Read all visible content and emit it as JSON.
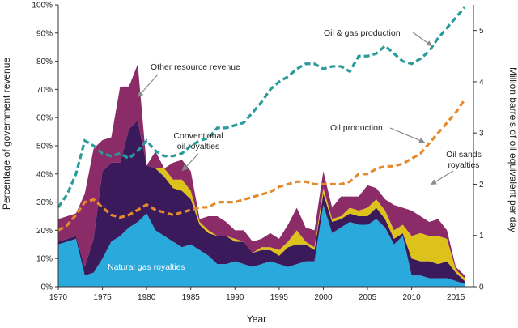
{
  "chart_data": {
    "type": "area",
    "xlabel": "Year",
    "ylabel_left": "Percentage of government revenue",
    "ylabel_right": "Million barrels of oil equivalent per day",
    "x_ticks": [
      "1970",
      "1975",
      "1980",
      "1985",
      "1990",
      "1995",
      "2000",
      "2005",
      "2010",
      "2015"
    ],
    "y_left_ticks": [
      "0%",
      "10%",
      "20%",
      "30%",
      "40%",
      "50%",
      "60%",
      "70%",
      "80%",
      "90%",
      "100%"
    ],
    "y_right_ticks": [
      "0",
      "1",
      "2",
      "3",
      "4",
      "5"
    ],
    "xlim": [
      1970,
      2017
    ],
    "ylim_left": [
      0,
      100
    ],
    "ylim_right": [
      0,
      5.5
    ],
    "x": [
      1970,
      1971,
      1972,
      1973,
      1974,
      1975,
      1976,
      1977,
      1978,
      1979,
      1980,
      1981,
      1982,
      1983,
      1984,
      1985,
      1986,
      1987,
      1988,
      1989,
      1990,
      1991,
      1992,
      1993,
      1994,
      1995,
      1996,
      1997,
      1998,
      1999,
      2000,
      2001,
      2002,
      2003,
      2004,
      2005,
      2006,
      2007,
      2008,
      2009,
      2010,
      2011,
      2012,
      2013,
      2014,
      2015,
      2016
    ],
    "stacked_series": [
      {
        "name": "Natural gas royalties",
        "color": "#29a9dc",
        "values": [
          15,
          16,
          17,
          4,
          5,
          10,
          16,
          18,
          21,
          23,
          26,
          20,
          18,
          16,
          14,
          15,
          13,
          11,
          8,
          8,
          9,
          8,
          7,
          8,
          9,
          8,
          7,
          8,
          9,
          9,
          29,
          19,
          21,
          23,
          22,
          22,
          24,
          21,
          15,
          18,
          4,
          4,
          3,
          3,
          3,
          2,
          1
        ]
      },
      {
        "name": "Conventional oil royalties",
        "color": "#3a1a5b",
        "values": [
          1,
          1,
          1,
          3,
          12,
          31,
          28,
          26,
          35,
          36,
          17,
          22,
          21,
          19,
          20,
          16,
          9,
          8,
          10,
          10,
          7,
          8,
          5,
          5,
          4,
          3,
          7,
          7,
          6,
          4,
          4,
          4,
          3,
          3,
          3,
          3,
          4,
          3,
          2,
          1,
          6,
          5,
          6,
          5,
          6,
          3,
          1
        ]
      },
      {
        "name": "Oil sands royalties",
        "color": "#dcc21a",
        "values": [
          0,
          0,
          0,
          0,
          0,
          0,
          0,
          0,
          0,
          0,
          0,
          0,
          3,
          3,
          4,
          3,
          1,
          1,
          0,
          0,
          1,
          0,
          0,
          1,
          1,
          2,
          2,
          5,
          1,
          1,
          2,
          1,
          1,
          2,
          2,
          3,
          3,
          3,
          3,
          3,
          8,
          10,
          9,
          10,
          8,
          1,
          1
        ]
      },
      {
        "name": "Other resource revenue",
        "color": "#8b2c68",
        "values": [
          8,
          8,
          8,
          26,
          32,
          11,
          9,
          27,
          15,
          20,
          0,
          6,
          0,
          6,
          7,
          7,
          1,
          5,
          7,
          5,
          3,
          4,
          4,
          3,
          5,
          4,
          6,
          8,
          5,
          6,
          6,
          4,
          7,
          4,
          5,
          8,
          4,
          4,
          9,
          6,
          9,
          6,
          5,
          6,
          3,
          1,
          1
        ]
      }
    ],
    "lines": [
      {
        "name": "Oil & gas production",
        "color": "#2a9a9a",
        "axis": "right",
        "values": [
          1.55,
          1.8,
          2.2,
          2.85,
          2.75,
          2.6,
          2.55,
          2.6,
          2.5,
          2.65,
          2.85,
          2.65,
          2.55,
          2.55,
          2.6,
          2.75,
          2.85,
          2.9,
          3.1,
          3.1,
          3.15,
          3.2,
          3.4,
          3.6,
          3.85,
          4.0,
          4.1,
          4.25,
          4.35,
          4.35,
          4.25,
          4.3,
          4.3,
          4.2,
          4.5,
          4.5,
          4.55,
          4.7,
          4.55,
          4.4,
          4.35,
          4.45,
          4.6,
          4.85,
          5.05,
          5.25,
          5.45
        ]
      },
      {
        "name": "Oil production",
        "color": "#e58a2a",
        "axis": "right",
        "values": [
          1.1,
          1.2,
          1.4,
          1.65,
          1.7,
          1.55,
          1.4,
          1.35,
          1.4,
          1.5,
          1.6,
          1.5,
          1.45,
          1.4,
          1.45,
          1.5,
          1.55,
          1.55,
          1.65,
          1.65,
          1.65,
          1.7,
          1.75,
          1.8,
          1.85,
          1.95,
          2.0,
          2.05,
          2.05,
          2.0,
          2.0,
          2.0,
          2.0,
          2.05,
          2.2,
          2.2,
          2.3,
          2.35,
          2.35,
          2.4,
          2.5,
          2.6,
          2.8,
          3.0,
          3.2,
          3.4,
          3.65
        ]
      }
    ],
    "annotations": [
      {
        "text": "Other resource revenue",
        "color": "#222222"
      },
      {
        "text": "Conventional",
        "color": "#222222"
      },
      {
        "text": "oil royalties",
        "color": "#222222"
      },
      {
        "text": "Oil & gas production",
        "color": "#222222"
      },
      {
        "text": "Oil production",
        "color": "#222222"
      },
      {
        "text": "Oil sands",
        "color": "#222222"
      },
      {
        "text": "royalties",
        "color": "#222222"
      },
      {
        "text": "Natural gas royalties",
        "color": "#ffffff"
      }
    ],
    "grid": false,
    "legend": "none"
  }
}
